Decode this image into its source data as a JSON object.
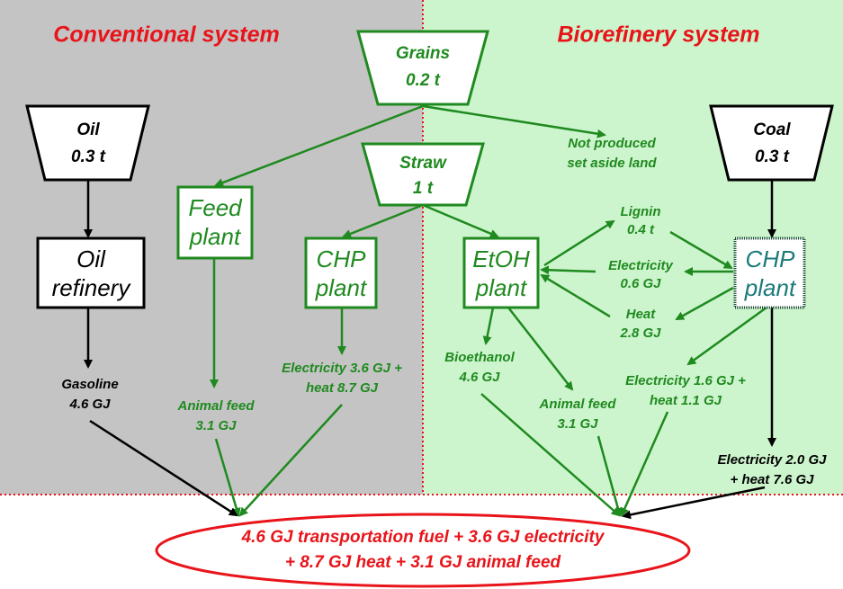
{
  "titles": {
    "left": "Conventional system",
    "right": "Biorefinery system"
  },
  "inputs": {
    "grains": [
      "Grains",
      "0.2 t"
    ],
    "oil": [
      "Oil",
      "0.3 t"
    ],
    "coal": [
      "Coal",
      "0.3 t"
    ],
    "straw": [
      "Straw",
      "1 t"
    ]
  },
  "plants": {
    "feed": [
      "Feed",
      "plant"
    ],
    "chp_left": [
      "CHP",
      "plant"
    ],
    "refinery": [
      "Oil",
      "refinery"
    ],
    "etoh": [
      "EtOH",
      "plant"
    ],
    "chp_right": [
      "CHP",
      "plant"
    ]
  },
  "flows": {
    "not_produced": [
      "Not produced",
      "set aside land"
    ],
    "lignin": [
      "Lignin",
      "0.4 t"
    ],
    "electricity_internal": [
      "Electricity",
      "0.6 GJ"
    ],
    "heat_internal": [
      "Heat",
      "2.8 GJ"
    ],
    "gasoline": [
      "Gasoline",
      "4.6 GJ"
    ],
    "animal_feed_left": [
      "Animal feed",
      "3.1 GJ"
    ],
    "chp_left_output": [
      "Electricity 3.6 GJ +",
      "heat 8.7 GJ"
    ],
    "bioethanol": [
      "Bioethanol",
      "4.6 GJ"
    ],
    "animal_feed_right": [
      "Animal feed",
      "3.1 GJ"
    ],
    "chp_right_output": [
      "Electricity 1.6 GJ +",
      "heat 1.1 GJ"
    ],
    "coal_output": [
      "Electricity 2.0 GJ",
      "+ heat 7.6 GJ"
    ]
  },
  "summary": [
    "4.6 GJ transportation fuel + 3.6 GJ electricity",
    "+ 8.7 GJ heat + 3.1 GJ animal feed"
  ]
}
